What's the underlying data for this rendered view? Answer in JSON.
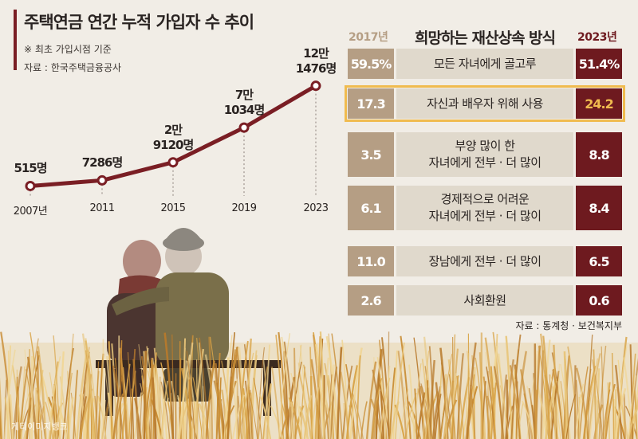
{
  "line_chart": {
    "title": "주택연금 연간 누적 가입자 수 추이",
    "note": "※ 최초 가입시점 기준",
    "source": "자료 : 한국주택금융공사"
  },
  "bar_table": {
    "title": "희망하는 재산상속 방식",
    "year_left": "2017년",
    "year_right": "2023년",
    "source": "자료 : 통계청 · 보건복지부"
  },
  "chart_data": [
    {
      "type": "line",
      "title": "주택연금 연간 누적 가입자 수 추이",
      "x": [
        "2007년",
        "2011",
        "2015",
        "2019",
        "2023"
      ],
      "values": [
        515,
        7286,
        29120,
        71034,
        121476
      ],
      "value_labels": [
        [
          "515명"
        ],
        [
          "7286명"
        ],
        [
          "2만",
          "9120명"
        ],
        [
          "7만",
          "1034명"
        ],
        [
          "12만",
          "1476명"
        ]
      ],
      "ylim": [
        0,
        125000
      ],
      "grid": false
    },
    {
      "type": "table",
      "title": "희망하는 재산상속 방식",
      "columns": [
        "2017년",
        "2023년"
      ],
      "rows": [
        {
          "label": "모든 자녀에게 골고루",
          "v2017": "59.5%",
          "v2023": "51.4%"
        },
        {
          "label": "자신과 배우자 위해 사용",
          "v2017": "17.3",
          "v2023": "24.2",
          "highlight": true
        },
        {
          "label": "부양 많이 한\n자녀에게 전부 · 더 많이",
          "v2017": "3.5",
          "v2023": "8.8"
        },
        {
          "label": "경제적으로 어려운\n자녀에게 전부 · 더 많이",
          "v2017": "6.1",
          "v2023": "8.4"
        },
        {
          "label": "장남에게 전부 · 더 많이",
          "v2017": "11.0",
          "v2023": "6.5"
        },
        {
          "label": "사회환원",
          "v2017": "2.6",
          "v2023": "0.6"
        }
      ]
    }
  ],
  "colors": {
    "line": "#7a1e24",
    "col2017": "#b59e84",
    "col2023": "#6e1a1f",
    "label_bg": "#e0d9cc",
    "highlight": "#f0bb4f"
  },
  "credit": "게티이미지뱅크"
}
